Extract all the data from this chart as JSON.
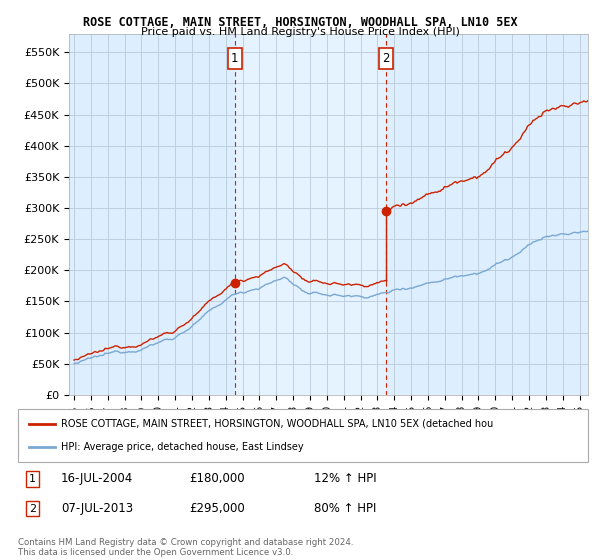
{
  "title1": "ROSE COTTAGE, MAIN STREET, HORSINGTON, WOODHALL SPA, LN10 5EX",
  "title2": "Price paid vs. HM Land Registry's House Price Index (HPI)",
  "ylim": [
    0,
    580000
  ],
  "yticks": [
    0,
    50000,
    100000,
    150000,
    200000,
    250000,
    300000,
    350000,
    400000,
    450000,
    500000,
    550000
  ],
  "ytick_labels": [
    "£0",
    "£50K",
    "£100K",
    "£150K",
    "£200K",
    "£250K",
    "£300K",
    "£350K",
    "£400K",
    "£450K",
    "£500K",
    "£550K"
  ],
  "xlim_start": 1994.7,
  "xlim_end": 2025.5,
  "purchase1_x": 2004.54,
  "purchase1_y": 180000,
  "purchase2_x": 2013.52,
  "purchase2_y": 295000,
  "legend_line1": "ROSE COTTAGE, MAIN STREET, HORSINGTON, WOODHALL SPA, LN10 5EX (detached hou",
  "legend_line2": "HPI: Average price, detached house, East Lindsey",
  "footer": "Contains HM Land Registry data © Crown copyright and database right 2024.\nThis data is licensed under the Open Government Licence v3.0.",
  "hpi_color": "#7aa8d2",
  "price_color": "#cc2200",
  "bg_color": "#ddeeff",
  "bg_highlight": "#cce4f5",
  "box_color": "#cc2200",
  "vline_color": "#cc2200",
  "grid_color": "#c0cfe0",
  "outer_bg": "#f0f4f8"
}
